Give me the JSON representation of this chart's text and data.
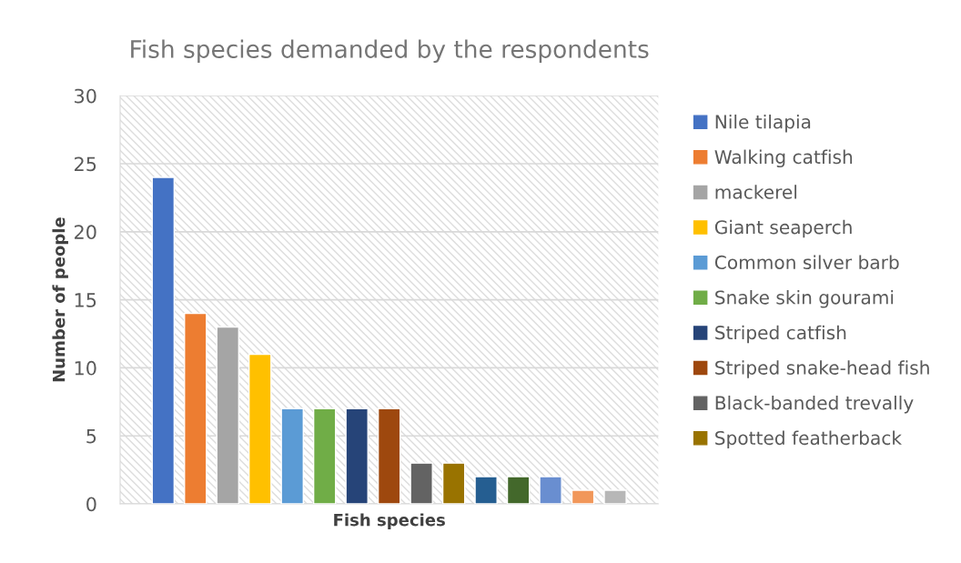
{
  "chart_data": {
    "type": "bar",
    "title": "Fish species demanded by the respondents",
    "xlabel": "Fish species",
    "ylabel": "Number of people",
    "categories": [
      null
    ],
    "series": [
      {
        "name": "Nile tilapia",
        "color": "#4472c4",
        "values": [
          24
        ]
      },
      {
        "name": "Walking catfish",
        "color": "#ed7d31",
        "values": [
          14
        ]
      },
      {
        "name": "mackerel",
        "color": "#a5a5a5",
        "values": [
          13
        ]
      },
      {
        "name": "Giant seaperch",
        "color": "#ffc000",
        "values": [
          11
        ]
      },
      {
        "name": "Common silver barb",
        "color": "#5b9bd5",
        "values": [
          7
        ]
      },
      {
        "name": "Snake skin gourami",
        "color": "#70ad47",
        "values": [
          7
        ]
      },
      {
        "name": "Striped catfish",
        "color": "#264478",
        "values": [
          7
        ]
      },
      {
        "name": "Striped snake-head fish",
        "color": "#9e480e",
        "values": [
          7
        ]
      },
      {
        "name": "Black-banded trevally",
        "color": "#636363",
        "values": [
          3
        ]
      },
      {
        "name": "Spotted featherback",
        "color": "#997300",
        "values": [
          3
        ]
      },
      {
        "color": "#255e91",
        "values": [
          2
        ]
      },
      {
        "color": "#43682b",
        "values": [
          2
        ]
      },
      {
        "color": "#698ed0",
        "values": [
          2
        ]
      },
      {
        "color": "#f1975a",
        "values": [
          1
        ]
      },
      {
        "color": "#b7b7b7",
        "values": [
          1
        ]
      }
    ],
    "ylim": [
      0,
      30
    ],
    "yticks": [
      0,
      5,
      10,
      15,
      20,
      25,
      30
    ],
    "grid": "y",
    "legend": "right"
  }
}
